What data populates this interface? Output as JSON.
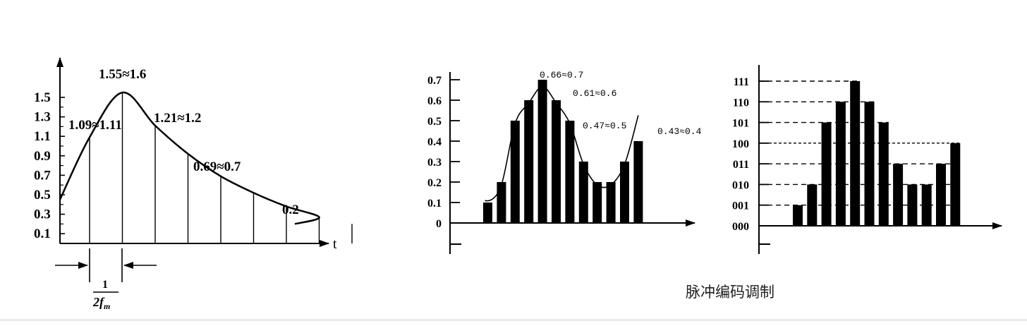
{
  "caption": "脉冲编码调制",
  "chart_data": [
    {
      "type": "line",
      "x_axis_label": "t",
      "y_ticks": [
        "0.1",
        "0.3",
        "0.5",
        "0.7",
        "0.9",
        "1.1",
        "1.3",
        "1.5"
      ],
      "interval_fraction": {
        "numerator": "1",
        "denominator": "2f",
        "subscript": "m"
      },
      "annotations": [
        "1.55≈1.6",
        "1.09≈1.11",
        "1.21≈1.2",
        "0.69≈0.7",
        "0.2"
      ],
      "samples": [
        1.09,
        1.55,
        1.21,
        0.92,
        0.69,
        0.52,
        0.38,
        0.27,
        0.2
      ]
    },
    {
      "type": "bar",
      "y_ticks": [
        "0",
        "0.1",
        "0.2",
        "0.3",
        "0.4",
        "0.5",
        "0.6",
        "0.7"
      ],
      "annotations": [
        "0.66≈0.7",
        "0.61≈0.6",
        "0.47≈0.5",
        "0.43≈0.4"
      ],
      "values": [
        0.1,
        0.2,
        0.5,
        0.6,
        0.7,
        0.6,
        0.5,
        0.3,
        0.2,
        0.2,
        0.3,
        0.4
      ],
      "ylim": [
        0,
        0.7
      ]
    },
    {
      "type": "bar",
      "y_ticks": [
        "000",
        "001",
        "010",
        "011",
        "100",
        "101",
        "110",
        "111"
      ],
      "values": [
        1,
        2,
        5,
        6,
        7,
        6,
        5,
        3,
        2,
        2,
        3,
        4
      ],
      "ylim": [
        0,
        7
      ]
    }
  ]
}
